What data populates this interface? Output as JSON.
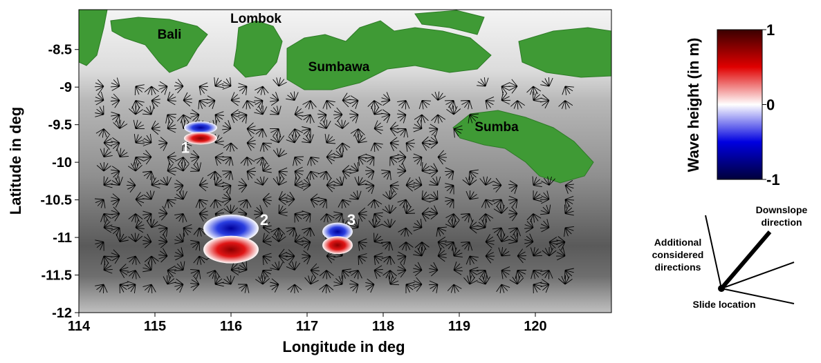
{
  "map": {
    "xlabel": "Longitude in deg",
    "ylabel": "Latitude in deg",
    "xlim": [
      114,
      121
    ],
    "ylim": [
      -12,
      -7.97
    ],
    "xticks": [
      114,
      115,
      116,
      117,
      118,
      119,
      120
    ],
    "yticks": [
      -8.5,
      -9,
      -9.5,
      -10,
      -10.5,
      -11,
      -11.5,
      -12
    ],
    "islands": [
      "Bali",
      "Lombok",
      "Sumbawa",
      "Sumba"
    ],
    "slides": [
      {
        "label": "1",
        "lon": 115.6,
        "lat": -9.6
      },
      {
        "label": "2",
        "lon": 116.0,
        "lat": -11.0
      },
      {
        "label": "3",
        "lon": 117.4,
        "lat": -11.0
      }
    ]
  },
  "colorbar": {
    "title": "Wave height (in m)",
    "range": [
      -1,
      1
    ],
    "ticks": [
      1,
      0,
      -1
    ]
  },
  "legend": {
    "downslope": [
      "Downslope",
      "direction"
    ],
    "additional": [
      "Additional",
      "considered",
      "directions"
    ],
    "slide": "Slide location"
  }
}
